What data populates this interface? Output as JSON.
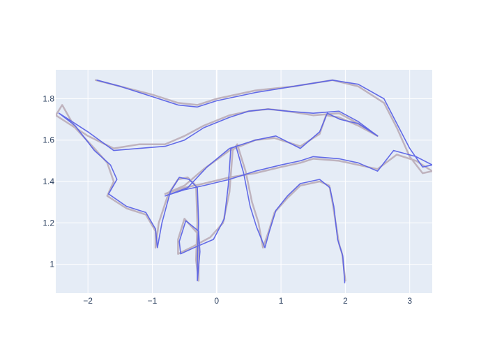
{
  "chart_data": {
    "type": "line",
    "title": "",
    "xlabel": "",
    "ylabel": "",
    "xlim": [
      -2.5,
      3.35
    ],
    "ylim": [
      0.86,
      1.94
    ],
    "grid": true,
    "legend": "none",
    "x_ticks": [
      {
        "value": -2,
        "label": "−2"
      },
      {
        "value": -1,
        "label": "−1"
      },
      {
        "value": 0,
        "label": "0"
      },
      {
        "value": 1,
        "label": "1"
      },
      {
        "value": 2,
        "label": "2"
      },
      {
        "value": 3,
        "label": "3"
      }
    ],
    "y_ticks": [
      {
        "value": 1.0,
        "label": "1"
      },
      {
        "value": 1.2,
        "label": "1.2"
      },
      {
        "value": 1.4,
        "label": "1.4"
      },
      {
        "value": 1.6,
        "label": "1.6"
      },
      {
        "value": 1.8,
        "label": "1.8"
      }
    ],
    "colors": {
      "plot_background": "#e5ecf6",
      "grid": "#ffffff",
      "series_reference": "#b8a9b4",
      "series_estimate": "#5b63e6"
    },
    "series": [
      {
        "role": "reference",
        "points": [
          [
            -1.88,
            1.89
          ],
          [
            -1.5,
            1.86
          ],
          [
            -1.0,
            1.82
          ],
          [
            -0.6,
            1.78
          ],
          [
            -0.3,
            1.77
          ],
          [
            0.0,
            1.8
          ],
          [
            0.6,
            1.84
          ],
          [
            1.2,
            1.86
          ],
          [
            1.8,
            1.89
          ],
          [
            2.2,
            1.86
          ],
          [
            2.6,
            1.78
          ],
          [
            2.8,
            1.66
          ],
          [
            3.0,
            1.52
          ],
          [
            3.2,
            1.44
          ],
          [
            3.35,
            1.45
          ],
          [
            3.1,
            1.5
          ],
          [
            2.8,
            1.53
          ],
          [
            2.5,
            1.46
          ],
          [
            2.2,
            1.48
          ],
          [
            1.9,
            1.5
          ],
          [
            1.5,
            1.51
          ],
          [
            1.3,
            1.49
          ],
          [
            1.0,
            1.47
          ],
          [
            0.6,
            1.44
          ],
          [
            0.2,
            1.42
          ],
          [
            -0.2,
            1.39
          ],
          [
            -0.5,
            1.37
          ],
          [
            -0.8,
            1.34
          ],
          [
            -0.5,
            1.38
          ],
          [
            -0.2,
            1.46
          ],
          [
            0.2,
            1.55
          ],
          [
            0.6,
            1.6
          ],
          [
            0.9,
            1.61
          ],
          [
            1.3,
            1.57
          ],
          [
            1.6,
            1.63
          ],
          [
            1.7,
            1.72
          ],
          [
            1.9,
            1.71
          ],
          [
            2.2,
            1.67
          ],
          [
            2.5,
            1.62
          ],
          [
            2.2,
            1.68
          ],
          [
            1.9,
            1.73
          ],
          [
            1.5,
            1.72
          ],
          [
            1.1,
            1.74
          ],
          [
            0.8,
            1.75
          ],
          [
            0.5,
            1.74
          ],
          [
            0.2,
            1.72
          ],
          [
            -0.2,
            1.67
          ],
          [
            -0.5,
            1.62
          ],
          [
            -0.8,
            1.58
          ],
          [
            -1.2,
            1.58
          ],
          [
            -1.6,
            1.56
          ],
          [
            -2.0,
            1.62
          ],
          [
            -2.3,
            1.68
          ],
          [
            -2.5,
            1.72
          ],
          [
            -2.4,
            1.77
          ],
          [
            -2.2,
            1.66
          ],
          [
            -1.9,
            1.56
          ],
          [
            -1.7,
            1.49
          ],
          [
            -1.6,
            1.4
          ],
          [
            -1.7,
            1.33
          ],
          [
            -1.4,
            1.27
          ],
          [
            -1.1,
            1.24
          ],
          [
            -0.95,
            1.16
          ],
          [
            -0.95,
            1.08
          ],
          [
            -0.9,
            1.2
          ],
          [
            -0.75,
            1.34
          ],
          [
            -0.6,
            1.41
          ],
          [
            -0.45,
            1.42
          ],
          [
            -0.32,
            1.38
          ],
          [
            -0.3,
            1.2
          ],
          [
            -0.32,
            1.02
          ],
          [
            -0.28,
            0.92
          ],
          [
            -0.28,
            1.05
          ],
          [
            -0.3,
            1.15
          ],
          [
            -0.5,
            1.22
          ],
          [
            -0.6,
            1.12
          ],
          [
            -0.6,
            1.05
          ],
          [
            -0.4,
            1.08
          ],
          [
            -0.1,
            1.13
          ],
          [
            0.1,
            1.2
          ],
          [
            0.2,
            1.35
          ],
          [
            0.25,
            1.55
          ],
          [
            0.32,
            1.58
          ],
          [
            0.45,
            1.45
          ],
          [
            0.55,
            1.3
          ],
          [
            0.65,
            1.2
          ],
          [
            0.72,
            1.08
          ],
          [
            0.8,
            1.15
          ],
          [
            0.9,
            1.25
          ],
          [
            1.1,
            1.32
          ],
          [
            1.3,
            1.38
          ],
          [
            1.6,
            1.4
          ],
          [
            1.75,
            1.38
          ],
          [
            1.8,
            1.3
          ],
          [
            1.9,
            1.1
          ],
          [
            1.95,
            1.05
          ],
          [
            2.0,
            0.92
          ]
        ]
      },
      {
        "role": "estimate",
        "points": [
          [
            -1.86,
            1.89
          ],
          [
            -1.5,
            1.86
          ],
          [
            -1.0,
            1.81
          ],
          [
            -0.6,
            1.77
          ],
          [
            -0.3,
            1.76
          ],
          [
            0.0,
            1.79
          ],
          [
            0.6,
            1.83
          ],
          [
            1.2,
            1.86
          ],
          [
            1.8,
            1.89
          ],
          [
            2.2,
            1.87
          ],
          [
            2.6,
            1.8
          ],
          [
            2.8,
            1.68
          ],
          [
            3.0,
            1.56
          ],
          [
            3.2,
            1.47
          ],
          [
            3.35,
            1.48
          ],
          [
            3.1,
            1.52
          ],
          [
            2.75,
            1.55
          ],
          [
            2.5,
            1.45
          ],
          [
            2.2,
            1.49
          ],
          [
            1.9,
            1.51
          ],
          [
            1.5,
            1.52
          ],
          [
            1.3,
            1.5
          ],
          [
            1.0,
            1.48
          ],
          [
            0.6,
            1.45
          ],
          [
            0.2,
            1.41
          ],
          [
            -0.2,
            1.38
          ],
          [
            -0.5,
            1.36
          ],
          [
            -0.8,
            1.33
          ],
          [
            -0.45,
            1.37
          ],
          [
            -0.15,
            1.47
          ],
          [
            0.2,
            1.56
          ],
          [
            0.6,
            1.6
          ],
          [
            0.92,
            1.62
          ],
          [
            1.3,
            1.56
          ],
          [
            1.6,
            1.64
          ],
          [
            1.72,
            1.73
          ],
          [
            1.92,
            1.7
          ],
          [
            2.2,
            1.68
          ],
          [
            2.5,
            1.62
          ],
          [
            2.2,
            1.69
          ],
          [
            1.9,
            1.74
          ],
          [
            1.5,
            1.73
          ],
          [
            1.1,
            1.74
          ],
          [
            0.8,
            1.75
          ],
          [
            0.5,
            1.74
          ],
          [
            0.2,
            1.71
          ],
          [
            -0.2,
            1.66
          ],
          [
            -0.5,
            1.6
          ],
          [
            -0.8,
            1.57
          ],
          [
            -1.2,
            1.56
          ],
          [
            -1.6,
            1.55
          ],
          [
            -2.0,
            1.64
          ],
          [
            -2.3,
            1.7
          ],
          [
            -2.45,
            1.73
          ],
          [
            -2.2,
            1.67
          ],
          [
            -1.9,
            1.55
          ],
          [
            -1.65,
            1.48
          ],
          [
            -1.55,
            1.41
          ],
          [
            -1.68,
            1.34
          ],
          [
            -1.4,
            1.28
          ],
          [
            -1.1,
            1.25
          ],
          [
            -0.95,
            1.17
          ],
          [
            -0.92,
            1.08
          ],
          [
            -0.85,
            1.2
          ],
          [
            -0.72,
            1.35
          ],
          [
            -0.58,
            1.42
          ],
          [
            -0.43,
            1.41
          ],
          [
            -0.3,
            1.37
          ],
          [
            -0.28,
            1.2
          ],
          [
            -0.3,
            1.03
          ],
          [
            -0.3,
            0.92
          ],
          [
            -0.26,
            1.06
          ],
          [
            -0.28,
            1.16
          ],
          [
            -0.48,
            1.21
          ],
          [
            -0.58,
            1.11
          ],
          [
            -0.56,
            1.05
          ],
          [
            -0.35,
            1.08
          ],
          [
            -0.05,
            1.12
          ],
          [
            0.12,
            1.22
          ],
          [
            0.18,
            1.38
          ],
          [
            0.22,
            1.56
          ],
          [
            0.3,
            1.57
          ],
          [
            0.42,
            1.44
          ],
          [
            0.52,
            1.28
          ],
          [
            0.62,
            1.18
          ],
          [
            0.75,
            1.08
          ],
          [
            0.82,
            1.16
          ],
          [
            0.92,
            1.26
          ],
          [
            1.1,
            1.33
          ],
          [
            1.3,
            1.39
          ],
          [
            1.6,
            1.41
          ],
          [
            1.76,
            1.37
          ],
          [
            1.82,
            1.28
          ],
          [
            1.88,
            1.12
          ],
          [
            1.96,
            1.04
          ],
          [
            1.99,
            0.91
          ]
        ]
      }
    ]
  }
}
